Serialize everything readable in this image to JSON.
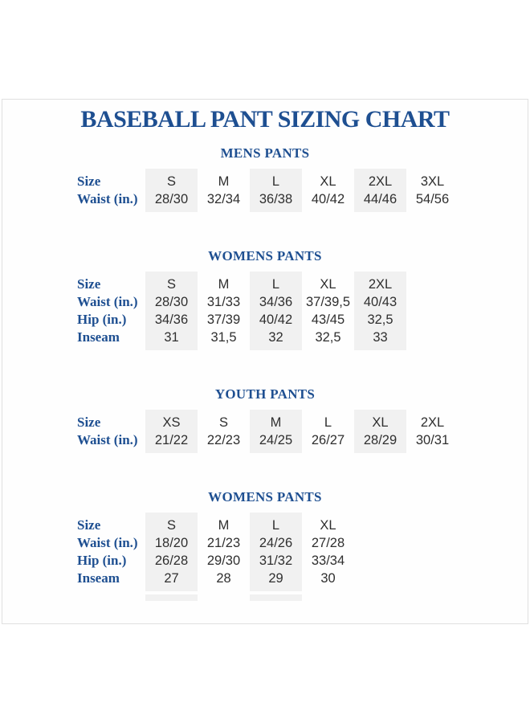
{
  "page_title": "BASEBALL PANT SIZING CHART",
  "colors": {
    "accent_blue": "#1e4f91",
    "value_text": "#2f2f2f",
    "column_highlight": "#f1f1f1",
    "sheet_border": "#e0e0e0"
  },
  "tables": [
    {
      "heading": "MENS PANTS",
      "highlight_cols": [
        0,
        2,
        4
      ],
      "bottom_stubs": [],
      "rows": [
        {
          "label": "Size",
          "values": [
            "S",
            "M",
            "L",
            "XL",
            "2XL",
            "3XL"
          ]
        },
        {
          "label": "Waist (in.)",
          "values": [
            "28/30",
            "32/34",
            "36/38",
            "40/42",
            "44/46",
            "54/56"
          ]
        }
      ]
    },
    {
      "heading": "WOMENS PANTS",
      "highlight_cols": [
        0,
        2,
        4
      ],
      "bottom_stubs": [],
      "rows": [
        {
          "label": "Size",
          "values": [
            "S",
            "M",
            "L",
            "XL",
            "2XL"
          ]
        },
        {
          "label": "Waist (in.)",
          "values": [
            "28/30",
            "31/33",
            "34/36",
            "37/39,5",
            "40/43"
          ]
        },
        {
          "label": "Hip (in.)",
          "values": [
            "34/36",
            "37/39",
            "40/42",
            "43/45",
            "32,5"
          ]
        },
        {
          "label": "Inseam",
          "values": [
            "31",
            "31,5",
            "32",
            "32,5",
            "33"
          ]
        }
      ]
    },
    {
      "heading": "YOUTH PANTS",
      "highlight_cols": [
        0,
        2,
        4
      ],
      "bottom_stubs": [],
      "rows": [
        {
          "label": "Size",
          "values": [
            "XS",
            "S",
            "M",
            "L",
            "XL",
            "2XL"
          ]
        },
        {
          "label": "Waist (in.)",
          "values": [
            "21/22",
            "22/23",
            "24/25",
            "26/27",
            "28/29",
            "30/31"
          ]
        }
      ]
    },
    {
      "heading": "WOMENS PANTS",
      "highlight_cols": [
        0,
        2
      ],
      "bottom_stubs": [
        0,
        2
      ],
      "rows": [
        {
          "label": "Size",
          "values": [
            "S",
            "M",
            "L",
            "XL"
          ]
        },
        {
          "label": "Waist (in.)",
          "values": [
            "18/20",
            "21/23",
            "24/26",
            "27/28"
          ]
        },
        {
          "label": "Hip (in.)",
          "values": [
            "26/28",
            "29/30",
            "31/32",
            "33/34"
          ]
        },
        {
          "label": "Inseam",
          "values": [
            "27",
            "28",
            "29",
            "30"
          ]
        }
      ]
    }
  ]
}
